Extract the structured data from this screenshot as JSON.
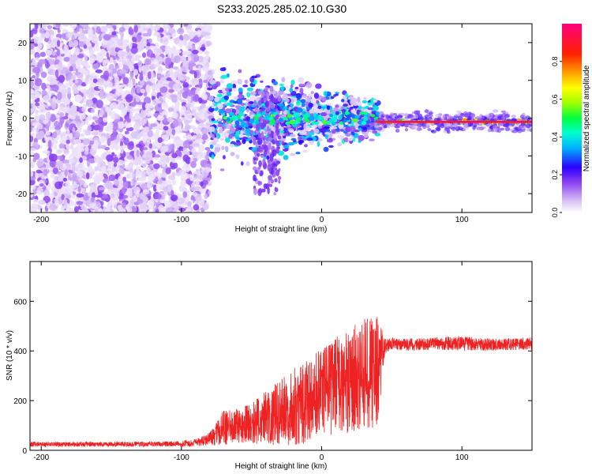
{
  "title": "S233.2025.285.02.10.G30",
  "chart_data": [
    {
      "type": "heatmap",
      "title": "S233.2025.285.02.10.G30",
      "xlabel": "Height of straight line (km)",
      "ylabel": "Frequency (Hz)",
      "xlim": [
        -208,
        150
      ],
      "ylim": [
        -25,
        25
      ],
      "xticks": [
        -200,
        -100,
        0,
        100
      ],
      "xtick_labels": [
        "-200",
        "-100",
        "0",
        "100"
      ],
      "yticks": [
        20,
        10,
        0,
        -10,
        -20
      ],
      "ytick_labels": [
        "20",
        "10",
        "0",
        "-10",
        "-20"
      ],
      "colorbar": {
        "label": "Normalized spectral amplitude",
        "range": [
          0,
          1
        ],
        "ticks": [
          0.0,
          0.2,
          0.4,
          0.6,
          0.8
        ],
        "tick_labels": [
          "0.0",
          "0.2",
          "0.4",
          "0.6",
          "0.8"
        ],
        "colors": [
          "#ffffff",
          "#d9c2f5",
          "#8a3ff0",
          "#2a00ff",
          "#00b0ff",
          "#00ffd0",
          "#00ff40",
          "#a0ff00",
          "#ffff00",
          "#ffa000",
          "#ff2000",
          "#ff0080"
        ]
      },
      "description_regions": [
        {
          "x_range": [
            -208,
            -80
          ],
          "freq_range": [
            -25,
            25
          ],
          "amplitude": 0.1
        },
        {
          "x_range": [
            -80,
            40
          ],
          "freq_center": 0,
          "amplitude": 0.4
        },
        {
          "x_range": [
            40,
            150
          ],
          "freq_center": -1,
          "amplitude": 0.9
        }
      ]
    },
    {
      "type": "line",
      "xlabel": "Height of straight line (km)",
      "ylabel": "SNR (10 * v/v)",
      "xlim": [
        -208,
        150
      ],
      "ylim": [
        0,
        760
      ],
      "xticks": [
        -200,
        -100,
        0,
        100
      ],
      "xtick_labels": [
        "-200",
        "-100",
        "0",
        "100"
      ],
      "yticks": [
        0,
        200,
        400,
        600
      ],
      "ytick_labels": [
        "0",
        "200",
        "400",
        "600"
      ],
      "color": "#ee2222",
      "series": [
        {
          "name": "SNR",
          "x": [
            -208,
            -180,
            -150,
            -120,
            -100,
            -90,
            -80,
            -70,
            -60,
            -50,
            -40,
            -30,
            -20,
            -10,
            0,
            10,
            20,
            30,
            40,
            45,
            50,
            60,
            80,
            100,
            120,
            150
          ],
          "mean": [
            25,
            24,
            25,
            25,
            26,
            30,
            45,
            90,
            100,
            110,
            130,
            150,
            175,
            200,
            230,
            260,
            280,
            300,
            320,
            420,
            430,
            425,
            430,
            430,
            425,
            430
          ],
          "amplitude": [
            10,
            10,
            10,
            10,
            12,
            15,
            25,
            70,
            70,
            80,
            110,
            130,
            160,
            170,
            180,
            200,
            210,
            230,
            220,
            30,
            25,
            25,
            25,
            30,
            25,
            25
          ]
        }
      ]
    }
  ]
}
